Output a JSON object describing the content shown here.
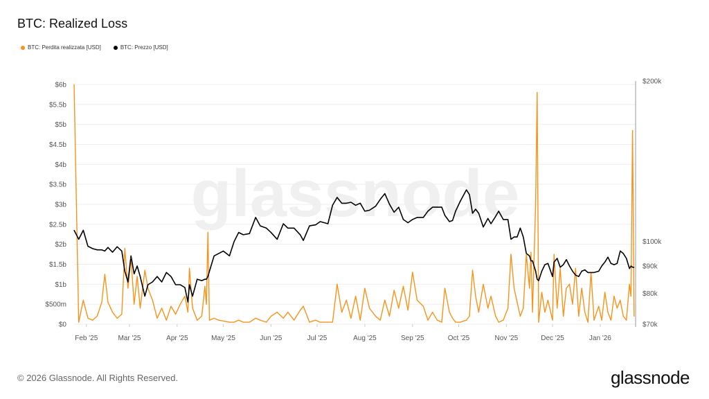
{
  "title": "BTC: Realized Loss",
  "footer": "© 2026 Glassnode. All Rights Reserved.",
  "logo": "glassnode",
  "watermark": "glassnode",
  "colors": {
    "loss": "#f7931a",
    "price": "#000000",
    "grid": "#eeeeee",
    "axis": "#999999"
  },
  "chart_data": {
    "type": "line",
    "title": "BTC: Realized Loss",
    "legend": {
      "placement": "top-left",
      "entries": [
        "BTC: Perdita realizzata [USD]",
        "BTC: Prezzo [USD]"
      ]
    },
    "grid": true,
    "x_ticks": [
      {
        "date": "2025-02-01",
        "label": "Feb '25"
      },
      {
        "date": "2025-03-01",
        "label": "Mar '25"
      },
      {
        "date": "2025-04-01",
        "label": "Apr '25"
      },
      {
        "date": "2025-05-01",
        "label": "May '25"
      },
      {
        "date": "2025-06-01",
        "label": "Jun '25"
      },
      {
        "date": "2025-07-01",
        "label": "Jul '25"
      },
      {
        "date": "2025-08-01",
        "label": "Aug '25"
      },
      {
        "date": "2025-09-01",
        "label": "Sep '25"
      },
      {
        "date": "2025-10-01",
        "label": "Oct '25"
      },
      {
        "date": "2025-11-01",
        "label": "Nov '25"
      },
      {
        "date": "2025-12-01",
        "label": "Dec '25"
      },
      {
        "date": "2026-01-01",
        "label": "Jan '26"
      }
    ],
    "xlim": [
      "2025-01-24",
      "2026-01-24"
    ],
    "y_left": {
      "scale": "linear",
      "unit": "USD billions",
      "range": [
        0,
        6
      ],
      "ticks": [
        {
          "v": 0,
          "label": "$0"
        },
        {
          "v": 0.5,
          "label": "$500m"
        },
        {
          "v": 1,
          "label": "$1b"
        },
        {
          "v": 1.5,
          "label": "$1.5b"
        },
        {
          "v": 2,
          "label": "$2b"
        },
        {
          "v": 2.5,
          "label": "$2.5b"
        },
        {
          "v": 3,
          "label": "$3b"
        },
        {
          "v": 3.5,
          "label": "$3.5b"
        },
        {
          "v": 4,
          "label": "$4b"
        },
        {
          "v": 4.5,
          "label": "$4.5b"
        },
        {
          "v": 5,
          "label": "$5b"
        },
        {
          "v": 5.5,
          "label": "$5.5b"
        },
        {
          "v": 6,
          "label": "$6b"
        }
      ]
    },
    "y_right": {
      "scale": "log",
      "unit": "USD thousands",
      "range": [
        70,
        200
      ],
      "ticks": [
        {
          "v": 70,
          "label": "$70k"
        },
        {
          "v": 80,
          "label": "$80k"
        },
        {
          "v": 90,
          "label": "$90k"
        },
        {
          "v": 100,
          "label": "$100k"
        },
        {
          "v": 200,
          "label": "$200k"
        }
      ]
    },
    "series": [
      {
        "name": "BTC: Perdita realizzata [USD]",
        "axis": "left",
        "color": "#f7931a"
      },
      {
        "name": "BTC: Prezzo [USD]",
        "axis": "right",
        "color": "#000000"
      }
    ],
    "points": [
      [
        "2025-01-24",
        6.0,
        105
      ],
      [
        "2025-01-27",
        0.05,
        101
      ],
      [
        "2025-01-30",
        0.6,
        105
      ],
      [
        "2025-02-02",
        0.15,
        98
      ],
      [
        "2025-02-05",
        0.1,
        97
      ],
      [
        "2025-02-08",
        0.2,
        96.5
      ],
      [
        "2025-02-11",
        0.55,
        96.5
      ],
      [
        "2025-02-13",
        1.25,
        96
      ],
      [
        "2025-02-15",
        0.55,
        97.5
      ],
      [
        "2025-02-18",
        0.3,
        95.5
      ],
      [
        "2025-02-21",
        0.15,
        97.8
      ],
      [
        "2025-02-24",
        0.25,
        96
      ],
      [
        "2025-02-26",
        1.9,
        88
      ],
      [
        "2025-02-28",
        0.9,
        84
      ],
      [
        "2025-03-02",
        1.65,
        94
      ],
      [
        "2025-03-04",
        0.5,
        87
      ],
      [
        "2025-03-06",
        1.2,
        90
      ],
      [
        "2025-03-08",
        0.4,
        86
      ],
      [
        "2025-03-11",
        1.35,
        79
      ],
      [
        "2025-03-13",
        0.9,
        83
      ],
      [
        "2025-03-16",
        0.6,
        84
      ],
      [
        "2025-03-19",
        0.15,
        86
      ],
      [
        "2025-03-22",
        0.4,
        84
      ],
      [
        "2025-03-25",
        0.1,
        87.5
      ],
      [
        "2025-03-28",
        0.45,
        86
      ],
      [
        "2025-03-31",
        0.25,
        83
      ],
      [
        "2025-04-03",
        0.5,
        83
      ],
      [
        "2025-04-06",
        0.7,
        82
      ],
      [
        "2025-04-08",
        0.3,
        77
      ],
      [
        "2025-04-09",
        1.4,
        83
      ],
      [
        "2025-04-11",
        0.4,
        79
      ],
      [
        "2025-04-14",
        0.1,
        85
      ],
      [
        "2025-04-17",
        0.2,
        84.5
      ],
      [
        "2025-04-19",
        0.95,
        85
      ],
      [
        "2025-04-20",
        0.5,
        85
      ],
      [
        "2025-04-21",
        2.3,
        86
      ],
      [
        "2025-04-22",
        0.1,
        88
      ],
      [
        "2025-04-25",
        0.15,
        94
      ],
      [
        "2025-04-28",
        0.1,
        95
      ],
      [
        "2025-05-01",
        0.08,
        96
      ],
      [
        "2025-05-05",
        0.05,
        94
      ],
      [
        "2025-05-08",
        0.05,
        100
      ],
      [
        "2025-05-11",
        0.1,
        104
      ],
      [
        "2025-05-14",
        0.05,
        103
      ],
      [
        "2025-05-18",
        0.05,
        103.5
      ],
      [
        "2025-05-22",
        0.15,
        111
      ],
      [
        "2025-05-25",
        0.1,
        107
      ],
      [
        "2025-05-29",
        0.05,
        106
      ],
      [
        "2025-06-01",
        0.2,
        104
      ],
      [
        "2025-06-05",
        0.3,
        101
      ],
      [
        "2025-06-09",
        0.15,
        108
      ],
      [
        "2025-06-12",
        0.3,
        106
      ],
      [
        "2025-06-16",
        0.1,
        106
      ],
      [
        "2025-06-20",
        0.35,
        103
      ],
      [
        "2025-06-22",
        0.45,
        100.5
      ],
      [
        "2025-06-26",
        0.05,
        107
      ],
      [
        "2025-06-30",
        0.1,
        107.5
      ],
      [
        "2025-07-03",
        0.05,
        109
      ],
      [
        "2025-07-08",
        0.05,
        108
      ],
      [
        "2025-07-11",
        0.05,
        117
      ],
      [
        "2025-07-14",
        1.0,
        121
      ],
      [
        "2025-07-17",
        0.3,
        118
      ],
      [
        "2025-07-20",
        0.6,
        118
      ],
      [
        "2025-07-23",
        0.15,
        118.5
      ],
      [
        "2025-07-26",
        0.7,
        117
      ],
      [
        "2025-07-29",
        0.1,
        118
      ],
      [
        "2025-08-01",
        0.9,
        114
      ],
      [
        "2025-08-04",
        0.4,
        114.5
      ],
      [
        "2025-08-08",
        0.2,
        116.5
      ],
      [
        "2025-08-11",
        0.1,
        120
      ],
      [
        "2025-08-14",
        0.6,
        123
      ],
      [
        "2025-08-17",
        0.2,
        117.5
      ],
      [
        "2025-08-20",
        0.85,
        113.5
      ],
      [
        "2025-08-23",
        0.4,
        116
      ],
      [
        "2025-08-26",
        0.95,
        110
      ],
      [
        "2025-08-29",
        0.35,
        108.5
      ],
      [
        "2025-09-01",
        1.3,
        110
      ],
      [
        "2025-09-04",
        0.6,
        111
      ],
      [
        "2025-09-08",
        0.45,
        111
      ],
      [
        "2025-09-11",
        0.1,
        114
      ],
      [
        "2025-09-14",
        0.3,
        116
      ],
      [
        "2025-09-17",
        0.1,
        116
      ],
      [
        "2025-09-20",
        0.05,
        116
      ],
      [
        "2025-09-22",
        0.9,
        112
      ],
      [
        "2025-09-25",
        0.3,
        109
      ],
      [
        "2025-09-27",
        0.15,
        109.5
      ],
      [
        "2025-09-29",
        0.05,
        114
      ],
      [
        "2025-10-02",
        0.05,
        119
      ],
      [
        "2025-10-06",
        0.1,
        125
      ],
      [
        "2025-10-08",
        0.2,
        122.5
      ],
      [
        "2025-10-10",
        1.35,
        113
      ],
      [
        "2025-10-12",
        0.7,
        115
      ],
      [
        "2025-10-14",
        0.3,
        113
      ],
      [
        "2025-10-17",
        1.0,
        106.5
      ],
      [
        "2025-10-20",
        0.4,
        110.5
      ],
      [
        "2025-10-22",
        0.7,
        108
      ],
      [
        "2025-10-25",
        0.2,
        111.5
      ],
      [
        "2025-10-27",
        0.05,
        114
      ],
      [
        "2025-10-30",
        0.1,
        110
      ],
      [
        "2025-11-02",
        0.4,
        110
      ],
      [
        "2025-11-04",
        1.75,
        101
      ],
      [
        "2025-11-06",
        0.9,
        102
      ],
      [
        "2025-11-08",
        0.55,
        102
      ],
      [
        "2025-11-10",
        0.2,
        106
      ],
      [
        "2025-11-12",
        0.4,
        102
      ],
      [
        "2025-11-14",
        1.75,
        95
      ],
      [
        "2025-11-16",
        0.9,
        94
      ],
      [
        "2025-11-17",
        1.8,
        92
      ],
      [
        "2025-11-18",
        0.3,
        92
      ],
      [
        "2025-11-20",
        3.0,
        88
      ],
      [
        "2025-11-21",
        5.8,
        85
      ],
      [
        "2025-11-22",
        0.05,
        84.5
      ],
      [
        "2025-11-24",
        0.8,
        88
      ],
      [
        "2025-11-26",
        0.3,
        90.5
      ],
      [
        "2025-11-28",
        0.6,
        91
      ],
      [
        "2025-12-01",
        0.1,
        86
      ],
      [
        "2025-12-02",
        1.75,
        91.5
      ],
      [
        "2025-12-04",
        0.4,
        93
      ],
      [
        "2025-12-06",
        1.4,
        89.5
      ],
      [
        "2025-12-08",
        0.2,
        90.5
      ],
      [
        "2025-12-10",
        0.9,
        92.5
      ],
      [
        "2025-12-12",
        1.0,
        90
      ],
      [
        "2025-12-14",
        0.5,
        88
      ],
      [
        "2025-12-16",
        1.4,
        86.5
      ],
      [
        "2025-12-18",
        0.2,
        86
      ],
      [
        "2025-12-20",
        0.9,
        88
      ],
      [
        "2025-12-22",
        0.3,
        88.5
      ],
      [
        "2025-12-24",
        0.05,
        87.5
      ],
      [
        "2025-12-26",
        1.3,
        87.5
      ],
      [
        "2025-12-28",
        0.1,
        87.5
      ],
      [
        "2025-12-31",
        0.45,
        88
      ],
      [
        "2026-01-02",
        0.1,
        90
      ],
      [
        "2026-01-04",
        0.8,
        91.5
      ],
      [
        "2026-01-06",
        0.3,
        93.5
      ],
      [
        "2026-01-08",
        0.1,
        91
      ],
      [
        "2026-01-10",
        0.7,
        90.5
      ],
      [
        "2026-01-12",
        0.4,
        91
      ],
      [
        "2026-01-14",
        0.6,
        96
      ],
      [
        "2026-01-16",
        0.2,
        95
      ],
      [
        "2026-01-18",
        0.1,
        93
      ],
      [
        "2026-01-20",
        1.0,
        89
      ],
      [
        "2026-01-21",
        0.7,
        90
      ],
      [
        "2026-01-22",
        4.85,
        89.5
      ],
      [
        "2026-01-23",
        0.2,
        89.5
      ]
    ],
    "points_columns": [
      "date",
      "realized_loss_usd_b",
      "price_usd_k"
    ]
  }
}
